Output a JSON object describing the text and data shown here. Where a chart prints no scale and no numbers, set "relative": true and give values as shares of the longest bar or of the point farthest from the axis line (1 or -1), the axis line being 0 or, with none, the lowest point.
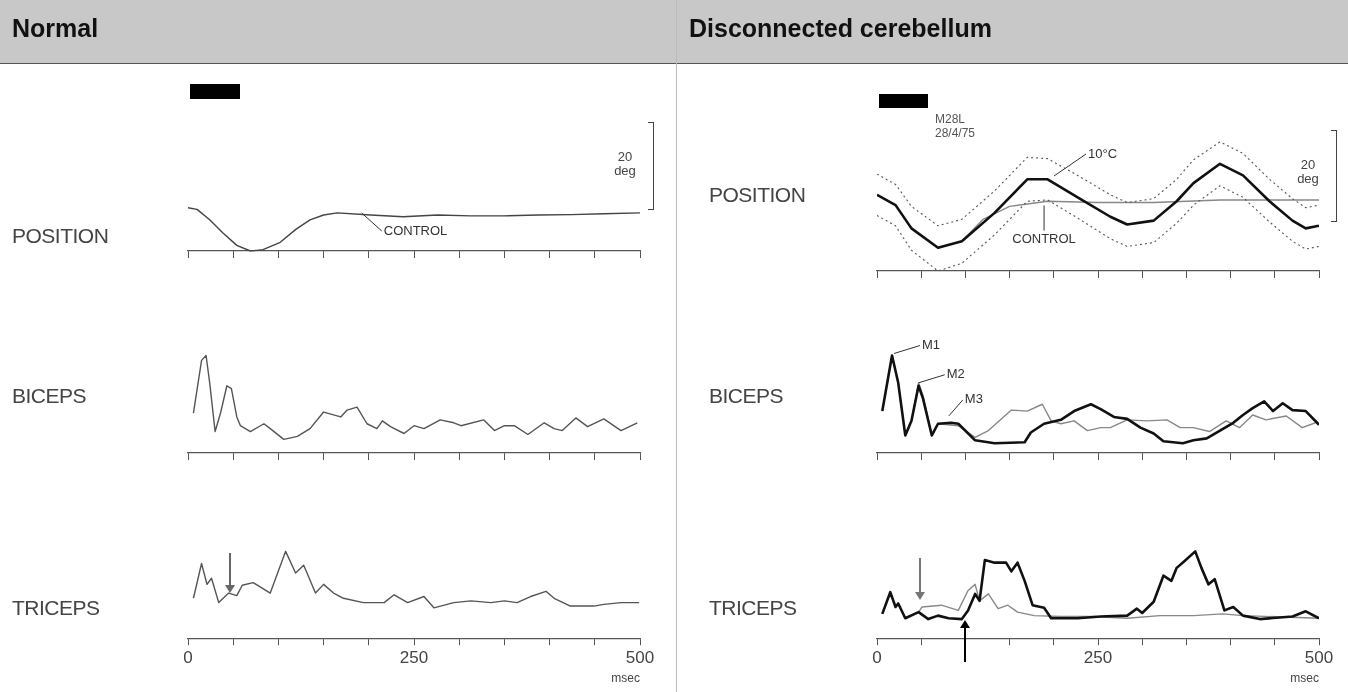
{
  "chart_data": [
    {
      "type": "line",
      "title": "Normal",
      "ylabel": "POSITION",
      "relative": true,
      "tick_labels": false,
      "xlim": [
        0,
        500
      ],
      "xticks": [
        0,
        {
          "value": 50,
          "label": null
        },
        {
          "value": 100,
          "label": null
        },
        {
          "value": 150,
          "label": null
        },
        {
          "value": 200,
          "label": null
        },
        250,
        {
          "value": 300,
          "label": null
        },
        {
          "value": 350,
          "label": null
        },
        {
          "value": 400,
          "label": null
        },
        {
          "value": 450,
          "label": null
        },
        500
      ],
      "annotations": [
        "20 deg",
        {
          "text": "CONTROL",
          "x": 190,
          "y": 0.83
        }
      ],
      "series": [
        {
          "color": "#444444",
          "x": [
            0,
            10,
            24,
            39,
            54,
            69,
            83,
            102,
            120,
            135,
            150,
            165,
            202,
            238,
            276,
            313,
            349,
            387,
            424,
            460,
            500
          ],
          "values": [
            1.0,
            0.96,
            0.72,
            0.41,
            0.13,
            0.0,
            0.03,
            0.2,
            0.51,
            0.72,
            0.83,
            0.88,
            0.83,
            0.79,
            0.83,
            0.81,
            0.81,
            0.83,
            0.84,
            0.86,
            0.88
          ]
        }
      ]
    },
    {
      "type": "line",
      "title": "Disconnected cerebellum",
      "ylabel": "POSITION",
      "relative": true,
      "tick_labels": false,
      "xlim": [
        0,
        500
      ],
      "xticks": [
        0,
        {
          "value": 50,
          "label": null
        },
        {
          "value": 100,
          "label": null
        },
        {
          "value": 150,
          "label": null
        },
        {
          "value": 200,
          "label": null
        },
        250,
        {
          "value": 300,
          "label": null
        },
        {
          "value": 350,
          "label": null
        },
        {
          "value": 400,
          "label": null
        },
        {
          "value": 450,
          "label": null
        },
        500
      ],
      "annotations": [
        "20 deg",
        "M28L",
        "28/4/75",
        {
          "text": "10°C",
          "x": 198,
          "y": 0.72
        },
        {
          "text": "CONTROL",
          "x": 189,
          "y": 0.53
        }
      ],
      "series": [
        {
          "color": "#111111",
          "x": [
            0,
            21,
            39,
            69,
            96,
            133,
            170,
            193,
            227,
            264,
            283,
            313,
            339,
            358,
            388,
            414,
            444,
            470,
            485,
            500
          ],
          "values": [
            0.59,
            0.51,
            0.33,
            0.18,
            0.23,
            0.45,
            0.71,
            0.71,
            0.57,
            0.42,
            0.36,
            0.39,
            0.54,
            0.68,
            0.83,
            0.74,
            0.54,
            0.39,
            0.33,
            0.35
          ]
        },
        {
          "color": "#555555",
          "line_style": "dotted",
          "x": [
            0,
            21,
            39,
            69,
            96,
            133,
            170,
            193,
            227,
            264,
            283,
            313,
            339,
            358,
            388,
            414,
            444,
            470,
            485,
            500
          ],
          "values": [
            0.75,
            0.67,
            0.5,
            0.35,
            0.4,
            0.62,
            0.88,
            0.87,
            0.74,
            0.59,
            0.53,
            0.56,
            0.71,
            0.86,
            1.0,
            0.91,
            0.71,
            0.56,
            0.49,
            0.51
          ]
        },
        {
          "color": "#555555",
          "line_style": "dotted",
          "x": [
            0,
            21,
            39,
            69,
            96,
            133,
            170,
            193,
            227,
            264,
            283,
            313,
            339,
            358,
            388,
            414,
            444,
            470,
            485,
            500
          ],
          "values": [
            0.43,
            0.35,
            0.16,
            0.0,
            0.06,
            0.28,
            0.54,
            0.55,
            0.41,
            0.25,
            0.19,
            0.22,
            0.37,
            0.51,
            0.66,
            0.57,
            0.38,
            0.23,
            0.17,
            0.19
          ]
        },
        {
          "color": "#888888",
          "x": [
            0,
            21,
            39,
            69,
            96,
            120,
            150,
            193,
            250,
            313,
            388,
            444,
            500
          ],
          "values": [
            0.59,
            0.51,
            0.33,
            0.18,
            0.23,
            0.4,
            0.5,
            0.54,
            0.53,
            0.53,
            0.55,
            0.55,
            0.55
          ]
        }
      ]
    },
    {
      "type": "line",
      "ylabel": "BICEPS",
      "relative": true,
      "xlim": [
        0,
        500
      ],
      "tick_labels": false,
      "xticks": [
        0,
        {
          "value": 50,
          "label": null
        },
        {
          "value": 100,
          "label": null
        },
        {
          "value": 150,
          "label": null
        },
        {
          "value": 200,
          "label": null
        },
        250,
        {
          "value": 300,
          "label": null
        },
        {
          "value": 350,
          "label": null
        },
        {
          "value": 400,
          "label": null
        },
        {
          "value": 450,
          "label": null
        },
        500
      ],
      "series": [
        {
          "color": "#555555",
          "x": [
            6,
            15,
            20,
            24,
            30,
            36,
            43,
            48,
            54,
            58,
            69,
            84,
            91,
            106,
            121,
            135,
            150,
            169,
            176,
            187,
            198,
            209,
            215,
            224,
            239,
            250,
            261,
            279,
            294,
            302,
            327,
            339,
            350,
            361,
            376,
            394,
            405,
            414,
            429,
            442,
            460,
            479,
            497
          ],
          "values": [
            0.41,
            0.95,
            1.0,
            0.72,
            0.22,
            0.41,
            0.69,
            0.66,
            0.37,
            0.28,
            0.22,
            0.3,
            0.25,
            0.14,
            0.17,
            0.25,
            0.42,
            0.37,
            0.44,
            0.47,
            0.3,
            0.25,
            0.33,
            0.27,
            0.2,
            0.28,
            0.25,
            0.34,
            0.31,
            0.28,
            0.34,
            0.23,
            0.28,
            0.28,
            0.19,
            0.31,
            0.25,
            0.23,
            0.36,
            0.27,
            0.35,
            0.23,
            0.31
          ]
        }
      ]
    },
    {
      "type": "line",
      "ylabel": "BICEPS",
      "relative": true,
      "xlim": [
        0,
        500
      ],
      "tick_labels": false,
      "xticks": [
        0,
        {
          "value": 50,
          "label": null
        },
        {
          "value": 100,
          "label": null
        },
        {
          "value": 150,
          "label": null
        },
        {
          "value": 200,
          "label": null
        },
        250,
        {
          "value": 300,
          "label": null
        },
        {
          "value": 350,
          "label": null
        },
        {
          "value": 400,
          "label": null
        },
        {
          "value": 450,
          "label": null
        },
        500
      ],
      "annotations": [
        {
          "text": "M1",
          "x": 17,
          "y": 1.0
        },
        {
          "text": "M2",
          "x": 45,
          "y": 0.7
        },
        {
          "text": "M3",
          "x": 79,
          "y": 0.36
        }
      ],
      "series": [
        {
          "color": "#111111",
          "x": [
            6,
            17,
            24,
            32,
            39,
            47,
            52,
            62,
            69,
            84,
            92,
            111,
            133,
            167,
            174,
            189,
            208,
            223,
            242,
            253,
            268,
            283,
            298,
            313,
            324,
            346,
            358,
            373,
            388,
            403,
            414,
            425,
            438,
            448,
            459,
            470,
            485,
            500
          ],
          "values": [
            0.43,
            1.0,
            0.72,
            0.18,
            0.33,
            0.69,
            0.56,
            0.18,
            0.3,
            0.31,
            0.3,
            0.13,
            0.1,
            0.11,
            0.21,
            0.3,
            0.34,
            0.43,
            0.5,
            0.45,
            0.37,
            0.35,
            0.26,
            0.2,
            0.12,
            0.1,
            0.13,
            0.15,
            0.23,
            0.31,
            0.39,
            0.46,
            0.53,
            0.43,
            0.51,
            0.44,
            0.43,
            0.29
          ]
        },
        {
          "color": "#888888",
          "x": [
            6,
            17,
            24,
            32,
            39,
            47,
            52,
            62,
            69,
            92,
            111,
            126,
            152,
            170,
            187,
            197,
            208,
            223,
            238,
            253,
            264,
            283,
            305,
            328,
            343,
            358,
            376,
            395,
            410,
            425,
            440,
            463,
            481,
            496
          ],
          "values": [
            0.43,
            1.0,
            0.72,
            0.18,
            0.33,
            0.72,
            0.59,
            0.18,
            0.3,
            0.28,
            0.16,
            0.23,
            0.44,
            0.43,
            0.5,
            0.33,
            0.3,
            0.33,
            0.23,
            0.26,
            0.26,
            0.34,
            0.33,
            0.34,
            0.26,
            0.26,
            0.22,
            0.33,
            0.26,
            0.39,
            0.34,
            0.38,
            0.26,
            0.31
          ]
        }
      ]
    },
    {
      "type": "line",
      "ylabel": "TRICEPS",
      "xlabel": "msec",
      "relative": true,
      "xlim": [
        0,
        500
      ],
      "xticks": [
        0,
        {
          "value": 50,
          "label": null
        },
        {
          "value": 100,
          "label": null
        },
        {
          "value": 150,
          "label": null
        },
        {
          "value": 200,
          "label": null
        },
        250,
        {
          "value": 300,
          "label": null
        },
        {
          "value": 350,
          "label": null
        },
        {
          "value": 400,
          "label": null
        },
        {
          "value": 450,
          "label": null
        },
        500
      ],
      "series": [
        {
          "color": "#555555",
          "x": [
            6,
            15,
            21,
            26,
            34,
            45,
            54,
            60,
            72,
            91,
            108,
            119,
            128,
            141,
            150,
            161,
            172,
            194,
            217,
            228,
            243,
            261,
            272,
            294,
            313,
            335,
            350,
            364,
            379,
            396,
            405,
            423,
            449,
            460,
            479,
            499
          ],
          "values": [
            0.46,
            0.86,
            0.62,
            0.69,
            0.41,
            0.52,
            0.49,
            0.61,
            0.64,
            0.52,
            1.0,
            0.75,
            0.84,
            0.52,
            0.62,
            0.52,
            0.46,
            0.41,
            0.41,
            0.5,
            0.41,
            0.48,
            0.35,
            0.41,
            0.43,
            0.41,
            0.43,
            0.41,
            0.48,
            0.54,
            0.46,
            0.37,
            0.37,
            0.39,
            0.41,
            0.41
          ]
        }
      ]
    },
    {
      "type": "line",
      "ylabel": "TRICEPS",
      "xlabel": "msec",
      "relative": true,
      "xlim": [
        0,
        500
      ],
      "xticks": [
        0,
        {
          "value": 50,
          "label": null
        },
        {
          "value": 100,
          "label": null
        },
        {
          "value": 150,
          "label": null
        },
        {
          "value": 200,
          "label": null
        },
        250,
        {
          "value": 300,
          "label": null
        },
        {
          "value": 350,
          "label": null
        },
        {
          "value": 400,
          "label": null
        },
        {
          "value": 450,
          "label": null
        },
        500
      ],
      "series": [
        {
          "color": "#111111",
          "x": [
            6,
            15,
            21,
            24,
            32,
            47,
            58,
            69,
            81,
            96,
            103,
            111,
            116,
            122,
            133,
            146,
            152,
            159,
            167,
            176,
            189,
            197,
            227,
            253,
            283,
            294,
            300,
            313,
            324,
            333,
            339,
            348,
            360,
            367,
            375,
            382,
            393,
            403,
            414,
            433,
            470,
            485,
            500
          ],
          "values": [
            0.28,
            0.53,
            0.36,
            0.4,
            0.23,
            0.3,
            0.22,
            0.26,
            0.23,
            0.22,
            0.32,
            0.51,
            0.43,
            0.9,
            0.87,
            0.87,
            0.77,
            0.87,
            0.66,
            0.38,
            0.35,
            0.23,
            0.23,
            0.25,
            0.26,
            0.34,
            0.29,
            0.42,
            0.72,
            0.66,
            0.81,
            0.89,
            1.0,
            0.81,
            0.62,
            0.68,
            0.32,
            0.36,
            0.26,
            0.22,
            0.25,
            0.31,
            0.23
          ]
        },
        {
          "color": "#888888",
          "x": [
            6,
            15,
            21,
            24,
            32,
            47,
            51,
            73,
            92,
            103,
            111,
            116,
            126,
            137,
            148,
            159,
            178,
            208,
            245,
            283,
            320,
            358,
            391,
            414,
            500
          ],
          "values": [
            0.28,
            0.53,
            0.36,
            0.4,
            0.23,
            0.3,
            0.36,
            0.38,
            0.32,
            0.55,
            0.62,
            0.43,
            0.51,
            0.34,
            0.38,
            0.3,
            0.26,
            0.25,
            0.25,
            0.23,
            0.26,
            0.26,
            0.28,
            0.26,
            0.23
          ]
        }
      ]
    }
  ]
}
